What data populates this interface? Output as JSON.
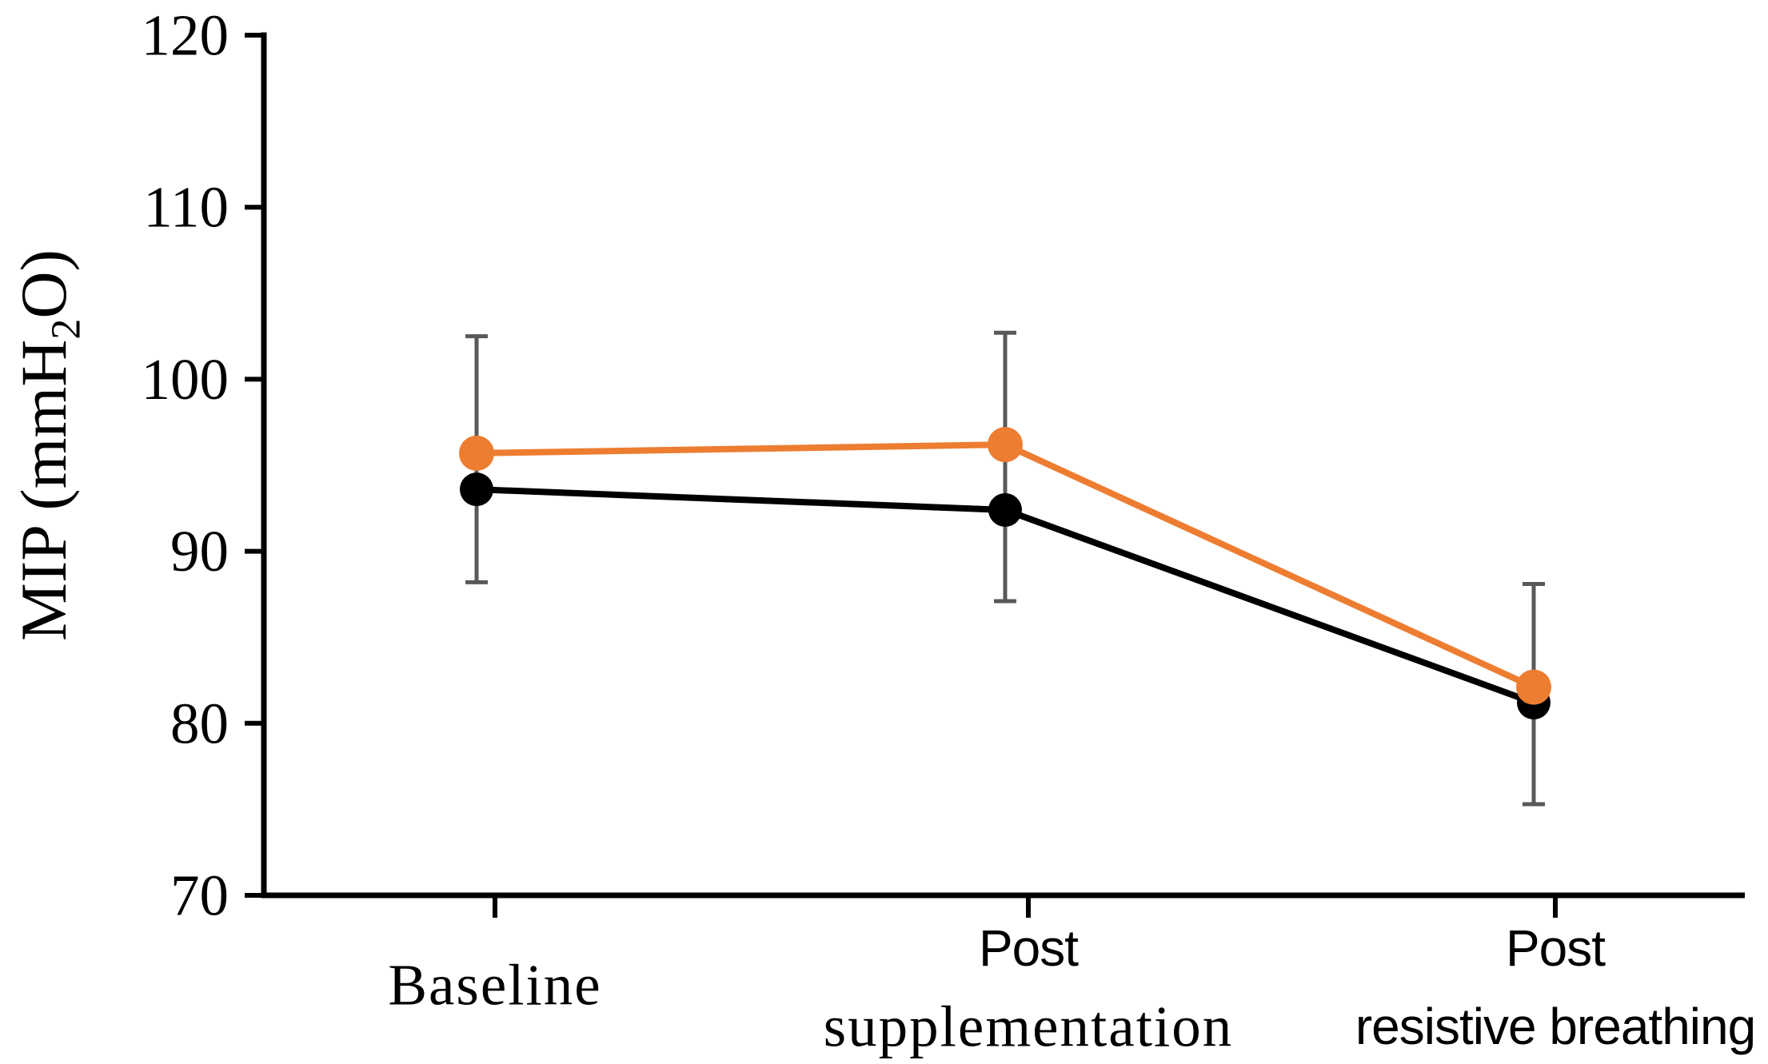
{
  "figure": {
    "ylabel": {
      "prefix": "MIP (mmH",
      "sub": "2",
      "suffix": "O)"
    }
  },
  "chart_data": {
    "type": "line",
    "title": "",
    "xlabel": "",
    "ylabel": "MIP (mmH2O)",
    "ylim": [
      70,
      120
    ],
    "yticks": [
      70,
      80,
      90,
      100,
      110,
      120
    ],
    "grid": false,
    "legend": false,
    "categories": [
      "Baseline",
      "Post supplementation",
      "Post resistive breathing"
    ],
    "category_label_lines": [
      [
        "Baseline"
      ],
      [
        "Post",
        "supplementation"
      ],
      [
        "Post",
        "resistive breathing"
      ]
    ],
    "series": [
      {
        "name": "black",
        "color": "#000000",
        "marker_radius": 21,
        "values": [
          93.6,
          92.4,
          81.2
        ]
      },
      {
        "name": "orange",
        "color": "#ED7D31",
        "marker_radius": 22,
        "values": [
          95.7,
          96.2,
          82.1
        ]
      }
    ],
    "error_whiskers": {
      "color": "#595959",
      "ranges": [
        [
          88.2,
          102.5
        ],
        [
          87.1,
          102.7
        ],
        [
          75.3,
          88.1
        ]
      ]
    },
    "axis_color": "#000000"
  }
}
